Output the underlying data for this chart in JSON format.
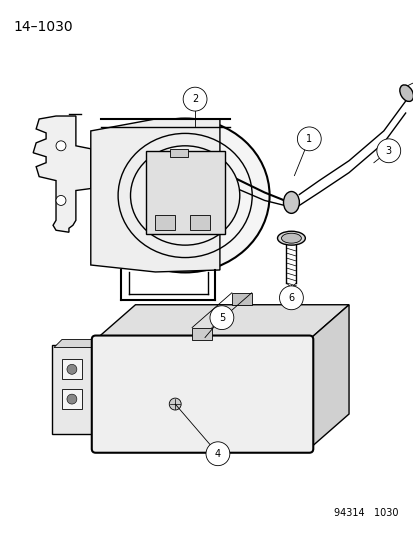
{
  "title": "14–1030",
  "footer": "94314   1030",
  "bg_color": "#ffffff",
  "title_fontsize": 10,
  "footer_fontsize": 7,
  "lc": "#000000",
  "lw_thin": 0.6,
  "lw_med": 1.0,
  "lw_thick": 1.5,
  "gray_light": "#d8d8d8",
  "gray_mid": "#b0b0b0",
  "gray_dark": "#888888"
}
